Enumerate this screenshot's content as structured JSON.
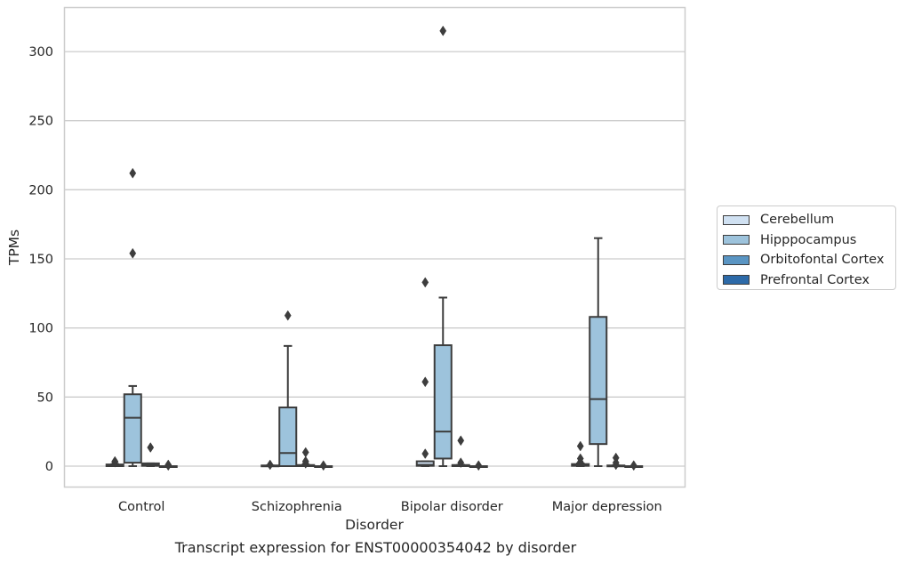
{
  "caption": "Transcript expression for ENST00000354042 by disorder",
  "chart_data": {
    "type": "box",
    "xlabel": "Disorder",
    "ylabel": "TPMs",
    "ylim": [
      -15,
      331
    ],
    "yticks": [
      0,
      50,
      100,
      150,
      200,
      250,
      300
    ],
    "grid": true,
    "legend_position": "right",
    "categories": [
      "Control",
      "Schizophrenia",
      "Bipolar disorder",
      "Major depression"
    ],
    "series": [
      {
        "name": "Cerebellum",
        "color": "#d0e1f2",
        "boxes": [
          {
            "whislo": 0,
            "q1": 0,
            "med": 0.4,
            "q3": 1.2,
            "whishi": 1.5,
            "fliers": [
              3.5,
              2.8
            ]
          },
          {
            "whislo": 0,
            "q1": 0,
            "med": 0.2,
            "q3": 0.5,
            "whishi": 0.5,
            "fliers": [
              1.0
            ]
          },
          {
            "whislo": 0,
            "q1": 0.2,
            "med": 1.0,
            "q3": 3.5,
            "whishi": 3.5,
            "fliers": [
              9.0,
              61.0,
              133.0
            ]
          },
          {
            "whislo": 0,
            "q1": 0.2,
            "med": 0.8,
            "q3": 1.5,
            "whishi": 2.0,
            "fliers": [
              3.0,
              5.5,
              14.5
            ]
          }
        ]
      },
      {
        "name": "Hipppocampus",
        "color": "#9dc3dc",
        "boxes": [
          {
            "whislo": 0,
            "q1": 2.5,
            "med": 35.0,
            "q3": 52.0,
            "whishi": 58.0,
            "fliers": [
              154.0,
              212.0
            ]
          },
          {
            "whislo": 0,
            "q1": 0,
            "med": 9.5,
            "q3": 42.5,
            "whishi": 87.0,
            "fliers": [
              109.0
            ]
          },
          {
            "whislo": 0,
            "q1": 5.5,
            "med": 25.0,
            "q3": 87.5,
            "whishi": 122.0,
            "fliers": [
              315.0
            ]
          },
          {
            "whislo": 0,
            "q1": 16.0,
            "med": 48.5,
            "q3": 108.0,
            "whishi": 165.0,
            "fliers": []
          }
        ]
      },
      {
        "name": "Orbitofontal Cortex",
        "color": "#5a95c3",
        "boxes": [
          {
            "whislo": 0,
            "q1": 0.2,
            "med": 0.8,
            "q3": 2.0,
            "whishi": 2.0,
            "fliers": [
              13.5
            ]
          },
          {
            "whislo": 0,
            "q1": 0,
            "med": 0.3,
            "q3": 0.8,
            "whishi": 1.0,
            "fliers": [
              2.0,
              3.5,
              10.0
            ]
          },
          {
            "whislo": 0,
            "q1": 0,
            "med": 0.3,
            "q3": 0.8,
            "whishi": 1.0,
            "fliers": [
              2.5,
              18.5
            ]
          },
          {
            "whislo": 0,
            "q1": 0,
            "med": 0.2,
            "q3": 0.5,
            "whishi": 0.5,
            "fliers": [
              1.0,
              2.5,
              6.0
            ]
          }
        ]
      },
      {
        "name": "Prefrontal Cortex",
        "color": "#2d6aa8",
        "boxes": [
          {
            "whislo": 0,
            "q1": 0,
            "med": 0,
            "q3": 0,
            "whishi": 0,
            "fliers": [
              0.5,
              1.0
            ]
          },
          {
            "whislo": 0,
            "q1": 0,
            "med": 0,
            "q3": 0,
            "whishi": 0,
            "fliers": [
              0.5
            ]
          },
          {
            "whislo": 0,
            "q1": 0,
            "med": 0,
            "q3": 0,
            "whishi": 0,
            "fliers": [
              0.5
            ]
          },
          {
            "whislo": 0,
            "q1": 0,
            "med": 0,
            "q3": 0,
            "whishi": 0,
            "fliers": [
              0.5
            ]
          }
        ]
      }
    ]
  }
}
